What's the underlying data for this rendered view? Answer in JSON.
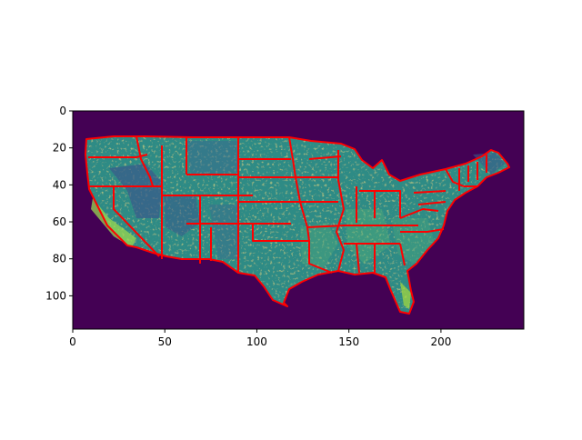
{
  "chart_data": {
    "type": "heatmap",
    "title": "",
    "xlabel": "",
    "ylabel": "",
    "xlim": [
      0,
      245
    ],
    "ylim": [
      118,
      0
    ],
    "x_ticks": [
      0,
      50,
      100,
      150,
      200
    ],
    "y_ticks": [
      0,
      20,
      40,
      60,
      80,
      100
    ],
    "x_tick_labels": [
      "0",
      "50",
      "100",
      "150",
      "200"
    ],
    "y_tick_labels": [
      "0",
      "20",
      "40",
      "60",
      "80",
      "100"
    ],
    "colormap": "viridis",
    "background_color": "#440154",
    "land_base_color": "#2e8b85",
    "boundary_color": "#ff0000",
    "grid": false,
    "legend": "none"
  }
}
